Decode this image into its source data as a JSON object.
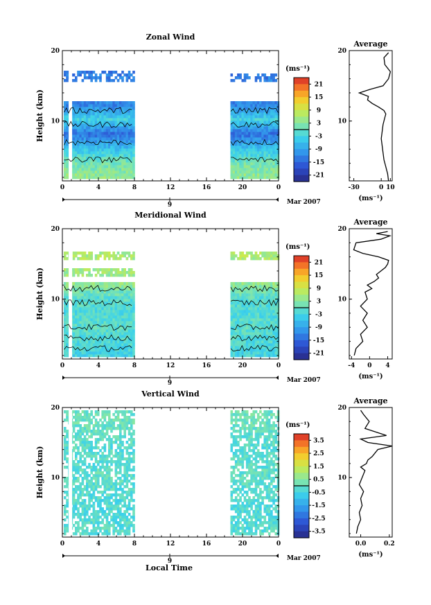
{
  "figure": {
    "panels": [
      {
        "key": "zonal",
        "title": "Zonal Wind",
        "ylabel": "Height (km)",
        "colorbar_unit": "(ms⁻¹)",
        "colorbar_ticks": [
          "21",
          "15",
          "9",
          "3",
          "-3",
          "-9",
          "-15",
          "-21"
        ],
        "colorbar_range": [
          -24,
          24
        ],
        "profile_title": "Average",
        "profile_xlabel": "(ms⁻¹)",
        "profile_xticks": [
          "-30",
          "0",
          "10"
        ],
        "date_label": "Mar 2007",
        "day_label": "9"
      },
      {
        "key": "meridional",
        "title": "Meridional Wind",
        "ylabel": "Height (km)",
        "colorbar_unit": "(ms⁻¹)",
        "colorbar_ticks": [
          "21",
          "15",
          "9",
          "3",
          "-3",
          "-9",
          "-15",
          "-21"
        ],
        "colorbar_range": [
          -24,
          24
        ],
        "profile_title": "Average",
        "profile_xlabel": "(ms⁻¹)",
        "profile_xticks": [
          "-4",
          "0",
          "4"
        ],
        "date_label": "Mar 2007",
        "day_label": "9"
      },
      {
        "key": "vertical",
        "title": "Vertical Wind",
        "ylabel": "Height (km)",
        "colorbar_unit": "(ms⁻¹)",
        "colorbar_ticks": [
          "3.5",
          "2.5",
          "1.5",
          "0.5",
          "-0.5",
          "-1.5",
          "-2.5",
          "-3.5"
        ],
        "colorbar_range": [
          -4,
          4
        ],
        "profile_title": "Average",
        "profile_xlabel": "(ms⁻¹)",
        "profile_xticks": [
          "0.0",
          "0.2"
        ],
        "date_label": "Mar 2007",
        "day_label": "9",
        "xlabel": "Local Time"
      }
    ],
    "time_ticks": [
      "0",
      "4",
      "8",
      "12",
      "16",
      "20",
      "0"
    ],
    "height_ticks": [
      "10",
      "20"
    ]
  },
  "chart_data": [
    {
      "type": "heatmap",
      "title": "Zonal Wind",
      "xlabel": "",
      "ylabel": "Height (km)",
      "x_range_hours": [
        0,
        24
      ],
      "ylim": [
        1.5,
        20
      ],
      "colorbar_unit": "ms-1",
      "colorbar_range": [
        -24,
        24
      ],
      "data_windows_hours": [
        [
          0,
          7.8
        ],
        [
          18.5,
          24
        ]
      ],
      "approx_values_by_height_km": {
        "height": [
          2,
          4,
          6,
          8,
          10,
          12,
          16
        ],
        "value": [
          4,
          1,
          -6,
          -14,
          -3,
          -12,
          -13
        ]
      }
    },
    {
      "type": "line",
      "title": "Average",
      "xlabel": "(ms-1)",
      "xlim": [
        -35,
        12
      ],
      "ylim": [
        1.5,
        20
      ],
      "series": [
        {
          "x": [
            8,
            7,
            5,
            3,
            2,
            1,
            0,
            1,
            2,
            4,
            5,
            3,
            -3,
            -10,
            -15,
            -14,
            -24,
            -12,
            2,
            8,
            10,
            4,
            3,
            8
          ],
          "y": [
            1.5,
            2.5,
            3.5,
            4.5,
            5.5,
            6.5,
            7.5,
            8.5,
            9.5,
            10.5,
            11.0,
            11.5,
            12.0,
            12.5,
            13.0,
            13.5,
            14.0,
            14.5,
            15.0,
            16.0,
            17.0,
            18.0,
            19.0,
            19.7
          ]
        }
      ]
    },
    {
      "type": "heatmap",
      "title": "Meridional Wind",
      "xlabel": "",
      "ylabel": "Height (km)",
      "x_range_hours": [
        0,
        24
      ],
      "ylim": [
        1.5,
        20
      ],
      "colorbar_unit": "ms-1",
      "colorbar_range": [
        -24,
        24
      ],
      "data_windows_hours": [
        [
          0,
          7.8
        ],
        [
          18.5,
          24
        ]
      ],
      "approx_values_by_height_km": {
        "height": [
          2,
          4,
          6,
          8,
          10,
          12,
          16
        ],
        "value": [
          -3,
          -2,
          -1,
          -2,
          -1,
          4,
          6
        ]
      }
    },
    {
      "type": "line",
      "title": "Average",
      "xlabel": "(ms-1)",
      "xlim": [
        -4.5,
        5
      ],
      "ylim": [
        1.5,
        20
      ],
      "series": [
        {
          "x": [
            -3.4,
            -3.0,
            -1.5,
            -2.0,
            -0.5,
            -1.5,
            -0.5,
            -2.0,
            -0.5,
            -1.0,
            0.5,
            -0.5,
            1.0,
            2.0,
            1.5,
            2.5,
            3.5,
            4.0,
            4.2,
            2.0,
            -1.5,
            -3.5,
            -3.0,
            2.5,
            4.5,
            1.5,
            4.0
          ],
          "y": [
            2.0,
            3.0,
            4.0,
            5.0,
            6.0,
            7.0,
            8.0,
            9.0,
            10.0,
            11.0,
            11.5,
            12.0,
            12.5,
            13.0,
            13.5,
            14.0,
            14.5,
            15.0,
            15.5,
            16.0,
            16.5,
            17.0,
            18.0,
            18.5,
            19.0,
            19.3,
            19.6
          ]
        }
      ]
    },
    {
      "type": "heatmap",
      "title": "Vertical Wind",
      "xlabel": "Local Time",
      "ylabel": "Height (km)",
      "x_range_hours": [
        0,
        24
      ],
      "ylim": [
        1.5,
        20
      ],
      "colorbar_unit": "ms-1",
      "colorbar_range": [
        -4,
        4
      ],
      "data_windows_hours": [
        [
          0,
          7.8
        ],
        [
          18.5,
          24
        ]
      ],
      "approx_values_by_height_km": {
        "height": [
          2,
          6,
          10,
          14,
          18
        ],
        "value": [
          -0.2,
          -0.3,
          -0.1,
          -0.2,
          0.1
        ]
      }
    },
    {
      "type": "line",
      "title": "Average",
      "xlabel": "(ms-1)",
      "xlim": [
        -0.08,
        0.22
      ],
      "ylim": [
        1.5,
        20
      ],
      "series": [
        {
          "x": [
            -0.03,
            -0.02,
            0.0,
            -0.01,
            0.01,
            0.0,
            0.02,
            -0.01,
            0.01,
            0.03,
            0.0,
            0.04,
            0.05,
            0.08,
            0.1,
            0.12,
            0.22,
            0.05,
            0.0,
            0.18,
            0.03,
            0.06,
            0.02,
            0.0
          ],
          "y": [
            2.0,
            3.0,
            4.0,
            5.0,
            6.0,
            7.0,
            8.0,
            9.0,
            10.0,
            11.0,
            11.5,
            12.0,
            12.5,
            13.0,
            13.5,
            14.0,
            14.5,
            15.0,
            15.5,
            16.0,
            17.0,
            18.0,
            19.0,
            19.6
          ]
        }
      ]
    }
  ]
}
